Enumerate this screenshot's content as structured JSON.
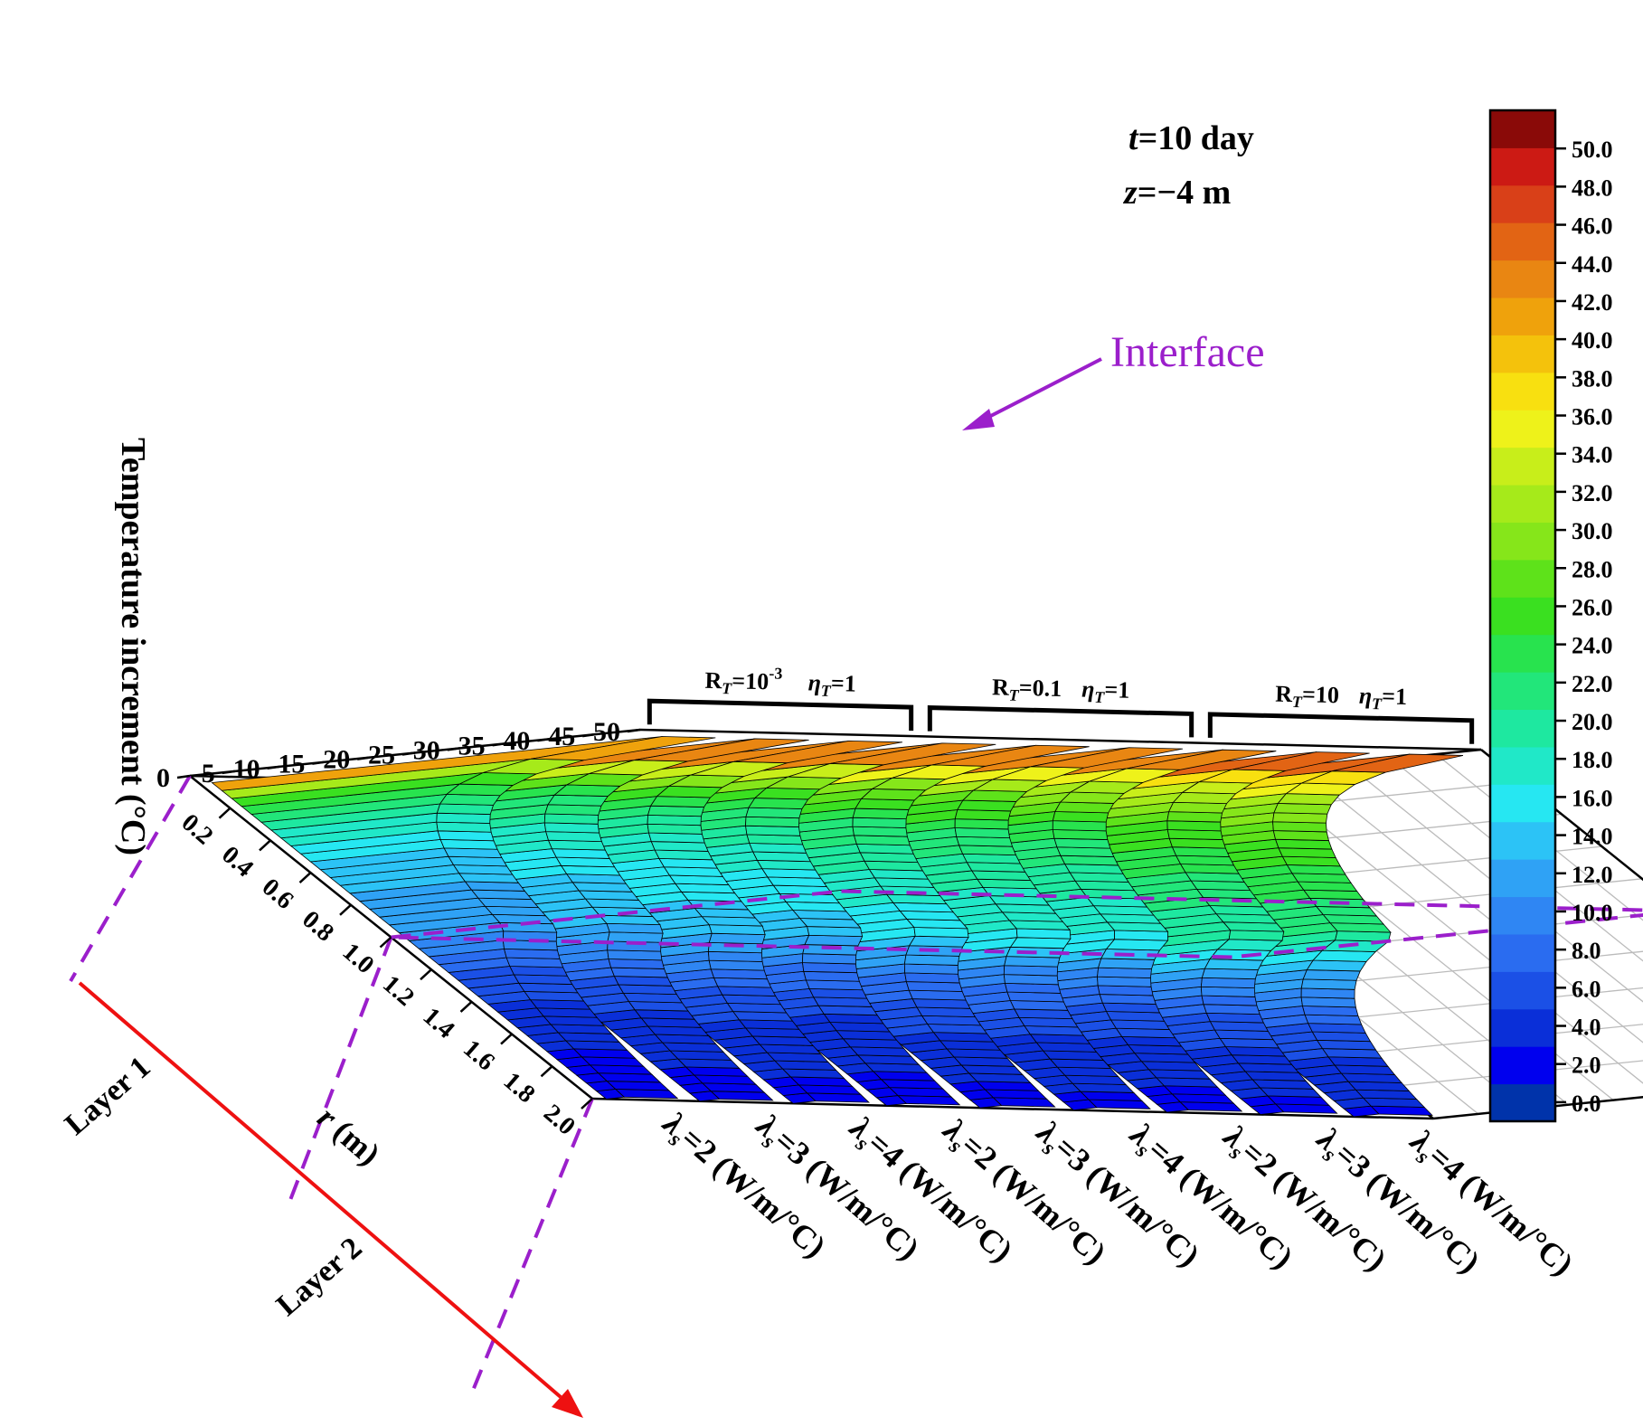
{
  "chart_data": {
    "type": "3d-wall",
    "title": "",
    "annotations": {
      "time": {
        "var": "t",
        "text": "=10 day"
      },
      "depth": {
        "var": "z",
        "text": "=−4 m"
      },
      "interface": "Interface",
      "layer1": "Layer 1",
      "layer2": "Layer 2"
    },
    "z_axis": {
      "label": "Temperature increment (°C)",
      "ticks": [
        "0",
        "5",
        "10",
        "15",
        "20",
        "25",
        "30",
        "35",
        "40",
        "45",
        "50"
      ],
      "range": [
        0,
        50
      ]
    },
    "r_axis": {
      "label_var": "r",
      "label_unit": " (m)",
      "ticks": [
        "0.2",
        "0.4",
        "0.6",
        "0.8",
        "1.0",
        "1.2",
        "1.4",
        "1.6",
        "1.8",
        "2.0"
      ],
      "range": [
        0,
        2
      ],
      "interface_r": 1.0
    },
    "groups": [
      {
        "rt_main": "R",
        "rt_sub": "T",
        "rt_value": "=10",
        "rt_sup": "-3",
        "eta_main": "η",
        "eta_sub": "T",
        "eta_value": "=1"
      },
      {
        "rt_main": "R",
        "rt_sub": "T",
        "rt_value": "=0.1",
        "rt_sup": "",
        "eta_main": "η",
        "eta_sub": "T",
        "eta_value": "=1"
      },
      {
        "rt_main": "R",
        "rt_sub": "T",
        "rt_value": "=10",
        "rt_sup": "",
        "eta_main": "η",
        "eta_sub": "T",
        "eta_value": "=1"
      }
    ],
    "series": [
      {
        "lambda": "=2 (W/m/°C)",
        "group": 0,
        "peak": 50.0,
        "at_interface": 11.0,
        "at_end": 2.0
      },
      {
        "lambda": "=3 (W/m/°C)",
        "group": 0,
        "peak": 50.0,
        "at_interface": 12.5,
        "at_end": 2.2
      },
      {
        "lambda": "=4 (W/m/°C)",
        "group": 0,
        "peak": 50.0,
        "at_interface": 13.5,
        "at_end": 2.5
      },
      {
        "lambda": "=2 (W/m/°C)",
        "group": 1,
        "peak": 50.0,
        "at_interface": 14.0,
        "at_end": 2.2
      },
      {
        "lambda": "=3 (W/m/°C)",
        "group": 1,
        "peak": 50.0,
        "at_interface": 15.5,
        "at_end": 2.4
      },
      {
        "lambda": "=4 (W/m/°C)",
        "group": 1,
        "peak": 50.0,
        "at_interface": 16.5,
        "at_end": 2.6
      },
      {
        "lambda": "=2 (W/m/°C)",
        "group": 2,
        "peak": 50.0,
        "at_interface": 17.0,
        "at_end": 2.4
      },
      {
        "lambda": "=3 (W/m/°C)",
        "group": 2,
        "peak": 50.0,
        "at_interface": 19.5,
        "at_end": 2.6
      },
      {
        "lambda": "=4 (W/m/°C)",
        "group": 2,
        "peak": 50.0,
        "at_interface": 21.0,
        "at_end": 2.8
      }
    ],
    "lambda_main": "λ",
    "lambda_sub": "s",
    "colorbar": {
      "ticks": [
        "0.0",
        "2.0",
        "4.0",
        "6.0",
        "8.0",
        "10.0",
        "12.0",
        "14.0",
        "16.0",
        "18.0",
        "20.0",
        "22.0",
        "24.0",
        "26.0",
        "28.0",
        "30.0",
        "32.0",
        "34.0",
        "36.0",
        "38.0",
        "40.0",
        "42.0",
        "44.0",
        "46.0",
        "48.0",
        "50.0"
      ],
      "colors": [
        "#0033aa",
        "#0000ee",
        "#0a2fd8",
        "#1b50e6",
        "#2a6cf0",
        "#2f86f3",
        "#2fa2f5",
        "#2cc3f6",
        "#26e7f2",
        "#20e8c8",
        "#1ee8a0",
        "#22e67a",
        "#28e34e",
        "#3ae020",
        "#5ee21a",
        "#86e61a",
        "#a6ea1a",
        "#c8ee1a",
        "#eef21a",
        "#f8e010",
        "#f4c20c",
        "#efa20c",
        "#e98612",
        "#e26414",
        "#d94018",
        "#cc1a14",
        "#8a0a08"
      ],
      "range": [
        -1,
        52
      ]
    },
    "colors": {
      "interface": "#9b1fcb",
      "arrow": "#ee1111",
      "grid": "#bbbbbb",
      "frame": "#000000"
    }
  }
}
